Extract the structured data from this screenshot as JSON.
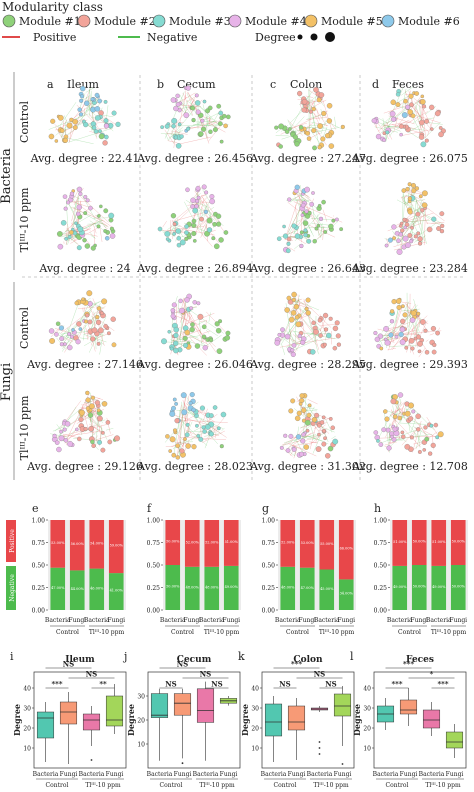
{
  "legend": {
    "title": "Modularity class",
    "modules": [
      {
        "label": "Module #1",
        "color": "#8fd17a"
      },
      {
        "label": "Module #2",
        "color": "#f2a49a"
      },
      {
        "label": "Module #3",
        "color": "#86dbd2"
      },
      {
        "label": "Module #4",
        "color": "#e7b3e8"
      },
      {
        "label": "Module #5",
        "color": "#f3c167"
      },
      {
        "label": "Module #6",
        "color": "#8ec9ea"
      }
    ],
    "positive_label": "Positive",
    "negative_label": "Negative",
    "degree_label": "Degree",
    "positive_color": "#e04a4a",
    "negative_color": "#4dbb4d"
  },
  "network": {
    "column_letters": [
      "a",
      "b",
      "c",
      "d"
    ],
    "columns": [
      "Ileum",
      "Cecum",
      "Colon",
      "Feces"
    ],
    "groups": [
      "Bacteria",
      "Fungi"
    ],
    "treatments": [
      "Control",
      "Tlᴵᴵᴵ-10 ppm"
    ],
    "avg_degrees": [
      [
        "Avg. degree : 22.41",
        "Avg. degree : 26.456",
        "Avg. degree : 27.247",
        "Avg. degree : 26.075"
      ],
      [
        "Avg. degree : 24",
        "Avg. degree : 26.894",
        "Avg. degree : 26.643",
        "Avg. degree : 23.284"
      ],
      [
        "Avg. degree : 27.146",
        "Avg. degree : 26.046",
        "Avg. degree : 28.295",
        "Avg. degree : 29.393"
      ],
      [
        "Avg. degree : 29.126",
        "Avg. degree : 28.023",
        "Avg. degree : 31.302",
        "Avg. degree : 12.708"
      ]
    ],
    "dominant_module": [
      [
        2,
        0,
        4,
        1
      ],
      [
        0,
        0,
        0,
        1
      ],
      [
        1,
        0,
        1,
        1
      ],
      [
        1,
        2,
        1,
        1
      ]
    ]
  },
  "chart_data": [
    {
      "type": "bar",
      "panel": "e",
      "title": "",
      "categories": [
        "Bacteria",
        "Fungi",
        "Bacteria",
        "Fungi"
      ],
      "group_labels": [
        "Control",
        "Tlᴵᴵᴵ-10 ppm"
      ],
      "ylabel_top": "Positive",
      "ylabel_bottom": "Negative",
      "yticks": [
        "0.00",
        "0.25",
        "0.50",
        "0.75",
        "1.00"
      ],
      "ylim": [
        0,
        1
      ],
      "series": [
        {
          "name": "Negative",
          "values": [
            0.47,
            0.44,
            0.46,
            0.41
          ]
        },
        {
          "name": "Positive",
          "values": [
            0.53,
            0.56,
            0.54,
            0.59
          ]
        }
      ]
    },
    {
      "type": "bar",
      "panel": "f",
      "categories": [
        "Bacteria",
        "Fungi",
        "Bacteria",
        "Fungi"
      ],
      "group_labels": [
        "Control",
        "Tlᴵᴵᴵ-10 ppm"
      ],
      "yticks": [
        "0.00",
        "0.25",
        "0.50",
        "0.75",
        "1.00"
      ],
      "ylim": [
        0,
        1
      ],
      "series": [
        {
          "name": "Negative",
          "values": [
            0.5,
            0.48,
            0.48,
            0.49
          ]
        },
        {
          "name": "Positive",
          "values": [
            0.5,
            0.52,
            0.52,
            0.51
          ]
        }
      ]
    },
    {
      "type": "bar",
      "panel": "g",
      "categories": [
        "Bacteria",
        "Fungi",
        "Bacteria",
        "Fungi"
      ],
      "group_labels": [
        "Control",
        "Tlᴵᴵᴵ-10 ppm"
      ],
      "yticks": [
        "0.00",
        "0.25",
        "0.50",
        "0.75",
        "1.00"
      ],
      "ylim": [
        0,
        1
      ],
      "series": [
        {
          "name": "Negative",
          "values": [
            0.48,
            0.47,
            0.45,
            0.34
          ]
        },
        {
          "name": "Positive",
          "values": [
            0.52,
            0.53,
            0.55,
            0.66
          ]
        }
      ]
    },
    {
      "type": "bar",
      "panel": "h",
      "categories": [
        "Bacteria",
        "Fungi",
        "Bacteria",
        "Fungi"
      ],
      "group_labels": [
        "Control",
        "Tlᴵᴵᴵ-10 ppm"
      ],
      "yticks": [
        "0.00",
        "0.25",
        "0.50",
        "0.75",
        "1.00"
      ],
      "ylim": [
        0,
        1
      ],
      "series": [
        {
          "name": "Negative",
          "values": [
            0.49,
            0.5,
            0.49,
            0.5
          ]
        },
        {
          "name": "Positive",
          "values": [
            0.51,
            0.5,
            0.51,
            0.5
          ]
        }
      ]
    },
    {
      "type": "box",
      "panel": "i",
      "title": "Ileum",
      "ylabel": "Degree",
      "categories": [
        "Bacteria",
        "Fungi",
        "Bacteria",
        "Fungi"
      ],
      "group_labels": [
        "Control",
        "Tlᴵᴵᴵ-10 ppm"
      ],
      "ylim": [
        0,
        48
      ],
      "yticks": [
        10,
        20,
        30,
        40
      ],
      "boxes": [
        {
          "min": 3,
          "q1": 15,
          "median": 25,
          "q3": 28,
          "max": 33,
          "outliers": []
        },
        {
          "min": 2,
          "q1": 22,
          "median": 28,
          "q3": 33,
          "max": 38,
          "outliers": []
        },
        {
          "min": 11,
          "q1": 19,
          "median": 24,
          "q3": 27,
          "max": 31,
          "outliers": [
            4
          ]
        },
        {
          "min": 17,
          "q1": 21,
          "median": 24,
          "q3": 36,
          "max": 42,
          "outliers": []
        }
      ],
      "significance": [
        {
          "from": 0,
          "to": 1,
          "label": "***"
        },
        {
          "from": 2,
          "to": 3,
          "label": "**"
        },
        {
          "from": 1,
          "to": 3,
          "label": "NS"
        },
        {
          "from": 0,
          "to": 2,
          "label": "NS"
        }
      ]
    },
    {
      "type": "box",
      "panel": "j",
      "title": "Cecum",
      "ylabel": "Degree",
      "categories": [
        "Bacteria",
        "Fungi",
        "Bacteria",
        "Fungi"
      ],
      "group_labels": [
        "Control",
        "Tlᴵᴵᴵ-10 ppm"
      ],
      "ylim": [
        0,
        40
      ],
      "yticks": [
        10,
        20,
        30
      ],
      "boxes": [
        {
          "min": 3,
          "q1": 21,
          "median": 22,
          "q3": 31,
          "max": 33,
          "outliers": []
        },
        {
          "min": 4,
          "q1": 22,
          "median": 27,
          "q3": 31,
          "max": 33,
          "outliers": [
            2
          ]
        },
        {
          "min": 3,
          "q1": 19,
          "median": 24,
          "q3": 33,
          "max": 36,
          "outliers": []
        },
        {
          "min": 26,
          "q1": 27,
          "median": 28,
          "q3": 29,
          "max": 30,
          "outliers": []
        }
      ],
      "significance": [
        {
          "from": 0,
          "to": 1,
          "label": "NS"
        },
        {
          "from": 2,
          "to": 3,
          "label": "NS"
        },
        {
          "from": 1,
          "to": 3,
          "label": "NS"
        },
        {
          "from": 0,
          "to": 2,
          "label": "NS"
        }
      ]
    },
    {
      "type": "box",
      "panel": "k",
      "title": "Colon",
      "ylabel": "Degree",
      "categories": [
        "Bacteria",
        "Fungi",
        "Bacteria",
        "Fungi"
      ],
      "group_labels": [
        "Control",
        "Tlᴵᴵᴵ-10 ppm"
      ],
      "ylim": [
        0,
        48
      ],
      "yticks": [
        10,
        20,
        30,
        40
      ],
      "boxes": [
        {
          "min": 3,
          "q1": 16,
          "median": 23,
          "q3": 32,
          "max": 36,
          "outliers": []
        },
        {
          "min": 4,
          "q1": 19,
          "median": 23,
          "q3": 31,
          "max": 35,
          "outliers": []
        },
        {
          "min": 28,
          "q1": 29,
          "median": 29.5,
          "q3": 30,
          "max": 31,
          "outliers": [
            13,
            10,
            7
          ]
        },
        {
          "min": 11,
          "q1": 26,
          "median": 31,
          "q3": 37,
          "max": 41,
          "outliers": [
            2
          ]
        }
      ],
      "significance": [
        {
          "from": 0,
          "to": 1,
          "label": "NS"
        },
        {
          "from": 2,
          "to": 3,
          "label": "NS"
        },
        {
          "from": 1,
          "to": 3,
          "label": "NS"
        },
        {
          "from": 0,
          "to": 2,
          "label": "***"
        }
      ]
    },
    {
      "type": "box",
      "panel": "l",
      "title": "Feces",
      "ylabel": "Degree",
      "categories": [
        "Bacteria",
        "Fungi",
        "Bacteria",
        "Fungi"
      ],
      "group_labels": [
        "Control",
        "Tlᴵᴵᴵ-10 ppm"
      ],
      "ylim": [
        0,
        48
      ],
      "yticks": [
        10,
        20,
        30,
        40
      ],
      "boxes": [
        {
          "min": 19,
          "q1": 23,
          "median": 27,
          "q3": 31,
          "max": 35,
          "outliers": []
        },
        {
          "min": 21,
          "q1": 27,
          "median": 29,
          "q3": 34,
          "max": 40,
          "outliers": []
        },
        {
          "min": 16,
          "q1": 20,
          "median": 24,
          "q3": 29,
          "max": 33,
          "outliers": []
        },
        {
          "min": 5,
          "q1": 10,
          "median": 13,
          "q3": 18,
          "max": 22,
          "outliers": []
        }
      ],
      "significance": [
        {
          "from": 0,
          "to": 1,
          "label": "***"
        },
        {
          "from": 2,
          "to": 3,
          "label": "***"
        },
        {
          "from": 1,
          "to": 3,
          "label": "*"
        },
        {
          "from": 0,
          "to": 2,
          "label": "***"
        }
      ]
    }
  ]
}
